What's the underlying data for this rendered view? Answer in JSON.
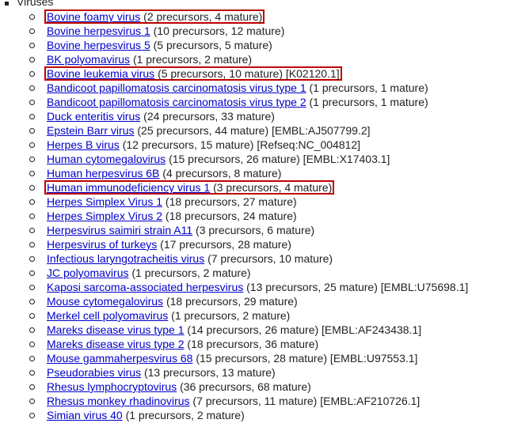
{
  "heading": "Viruses",
  "items": [
    {
      "name": "Bovine foamy virus",
      "detail": "(2 precursors, 4 mature)"
    },
    {
      "name": "Bovine herpesvirus 1",
      "detail": "(10 precursors, 12 mature)"
    },
    {
      "name": "Bovine herpesvirus 5",
      "detail": "(5 precursors, 5 mature)"
    },
    {
      "name": "BK polyomavirus",
      "detail": "(1 precursors, 2 mature)"
    },
    {
      "name": "Bovine leukemia virus",
      "detail": "(5 precursors, 10 mature) [K02120.1]"
    },
    {
      "name": "Bandicoot papillomatosis carcinomatosis virus type 1",
      "detail": "(1 precursors, 1 mature)"
    },
    {
      "name": "Bandicoot papillomatosis carcinomatosis virus type 2",
      "detail": "(1 precursors, 1 mature)"
    },
    {
      "name": "Duck enteritis virus",
      "detail": "(24 precursors, 33 mature)"
    },
    {
      "name": "Epstein Barr virus",
      "detail": "(25 precursors, 44 mature) [EMBL:AJ507799.2]"
    },
    {
      "name": "Herpes B virus",
      "detail": "(12 precursors, 15 mature) [Refseq:NC_004812]"
    },
    {
      "name": "Human cytomegalovirus",
      "detail": "(15 precursors, 26 mature) [EMBL:X17403.1]"
    },
    {
      "name": "Human herpesvirus 6B",
      "detail": "(4 precursors, 8 mature)"
    },
    {
      "name": "Human immunodeficiency virus 1",
      "detail": "(3 precursors, 4 mature)"
    },
    {
      "name": "Herpes Simplex Virus 1",
      "detail": "(18 precursors, 27 mature)"
    },
    {
      "name": "Herpes Simplex Virus 2",
      "detail": "(18 precursors, 24 mature)"
    },
    {
      "name": "Herpesvirus saimiri strain A11",
      "detail": "(3 precursors, 6 mature)"
    },
    {
      "name": "Herpesvirus of turkeys",
      "detail": "(17 precursors, 28 mature)"
    },
    {
      "name": "Infectious laryngotracheitis virus",
      "detail": "(7 precursors, 10 mature)"
    },
    {
      "name": "JC polyomavirus",
      "detail": "(1 precursors, 2 mature)"
    },
    {
      "name": "Kaposi sarcoma-associated herpesvirus",
      "detail": "(13 precursors, 25 mature) [EMBL:U75698.1]"
    },
    {
      "name": "Mouse cytomegalovirus",
      "detail": "(18 precursors, 29 mature)"
    },
    {
      "name": "Merkel cell polyomavirus",
      "detail": "(1 precursors, 2 mature)"
    },
    {
      "name": "Mareks disease virus type 1",
      "detail": "(14 precursors, 26 mature) [EMBL:AF243438.1]"
    },
    {
      "name": "Mareks disease virus type 2",
      "detail": "(18 precursors, 36 mature)"
    },
    {
      "name": "Mouse gammaherpesvirus 68",
      "detail": "(15 precursors, 28 mature) [EMBL:U97553.1]"
    },
    {
      "name": "Pseudorabies virus",
      "detail": "(13 precursors, 13 mature)"
    },
    {
      "name": "Rhesus lymphocryptovirus",
      "detail": "(36 precursors, 68 mature)"
    },
    {
      "name": "Rhesus monkey rhadinovirus",
      "detail": "(7 precursors, 11 mature) [EMBL:AF210726.1]"
    },
    {
      "name": "Simian virus 40",
      "detail": "(1 precursors, 2 mature)"
    }
  ]
}
